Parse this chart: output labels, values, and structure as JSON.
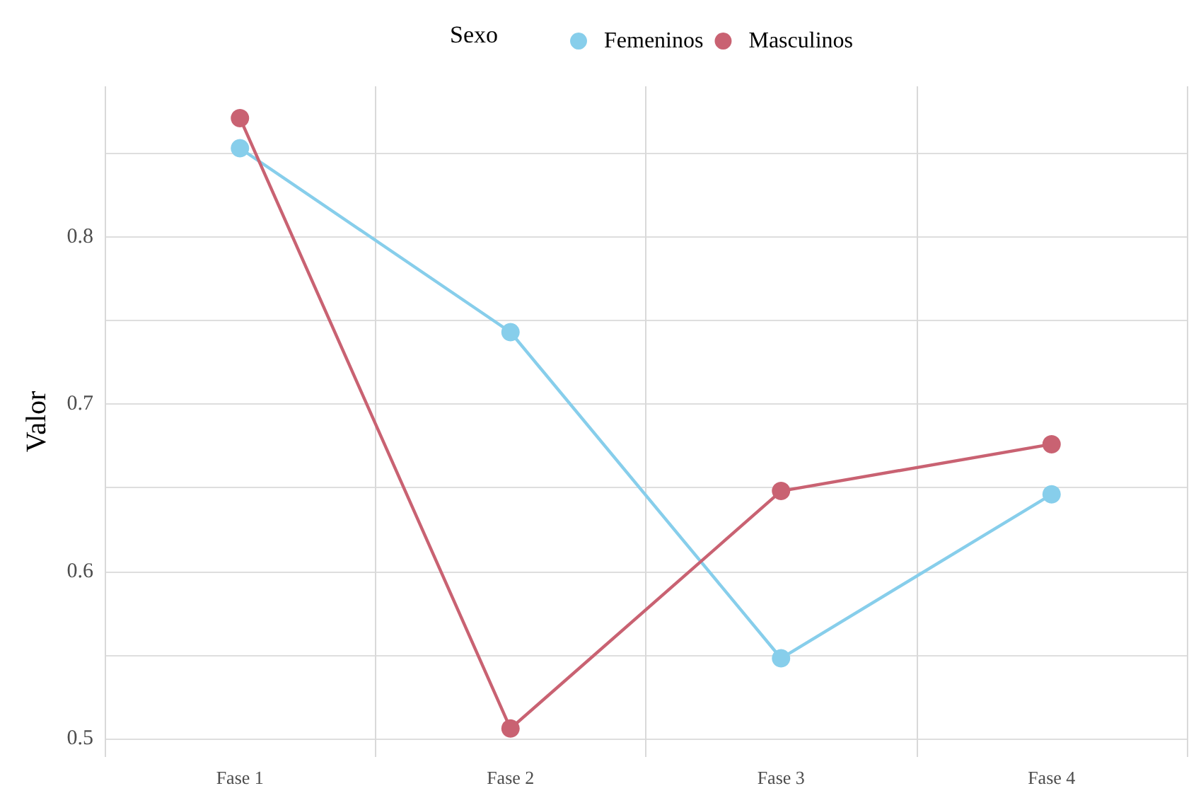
{
  "chart_data": {
    "type": "line",
    "ylabel": "Valor",
    "legend_title": "Sexo",
    "categories": [
      "Fase 1",
      "Fase 2",
      "Fase 3",
      "Fase 4"
    ],
    "series": [
      {
        "name": "Femeninos",
        "color": "#87ceeb",
        "values": [
          0.853,
          0.743,
          0.548,
          0.646
        ]
      },
      {
        "name": "Masculinos",
        "color": "#c96272",
        "values": [
          0.871,
          0.506,
          0.648,
          0.676
        ]
      }
    ],
    "ylim": [
      0.489,
      0.89
    ],
    "yticks": [
      0.5,
      {
        "value": 0.55,
        "label": null
      },
      0.6,
      {
        "value": 0.65,
        "label": null
      },
      0.7,
      {
        "value": 0.75,
        "label": null
      },
      0.8,
      {
        "value": 0.85,
        "label": null
      }
    ],
    "grid": true,
    "legend": "top",
    "marker": "circle",
    "line_style": "solid"
  }
}
